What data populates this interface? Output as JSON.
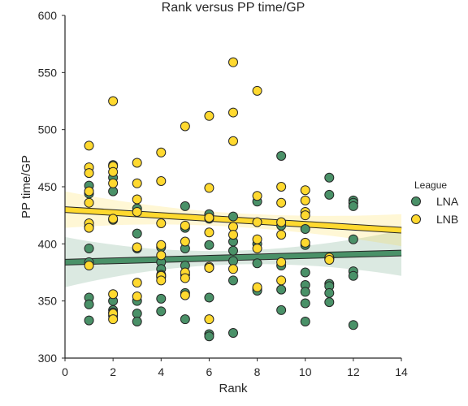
{
  "chart_data": {
    "type": "scatter",
    "title": "Rank versus PP time/GP",
    "xlabel": "Rank",
    "ylabel": "PP time/GP",
    "xlim": [
      0,
      14
    ],
    "ylim": [
      300,
      600
    ],
    "xticks": [
      0,
      2,
      4,
      6,
      8,
      10,
      12,
      14
    ],
    "yticks": [
      300,
      350,
      400,
      450,
      500,
      550,
      600
    ],
    "grid": false,
    "legend": {
      "title": "League",
      "placement": "right",
      "entries": [
        "LNA",
        "LNB"
      ]
    },
    "series": [
      {
        "name": "LNA",
        "color": "#4a9168",
        "points": [
          [
            1,
            451
          ],
          [
            1,
            444
          ],
          [
            1,
            415
          ],
          [
            1,
            396
          ],
          [
            1,
            384
          ],
          [
            1,
            353
          ],
          [
            1,
            347
          ],
          [
            1,
            333
          ],
          [
            2,
            469
          ],
          [
            2,
            458
          ],
          [
            2,
            446
          ],
          [
            2,
            421
          ],
          [
            2,
            350
          ],
          [
            2,
            342
          ],
          [
            2,
            340
          ],
          [
            2,
            337
          ],
          [
            3,
            431
          ],
          [
            3,
            409
          ],
          [
            3,
            396
          ],
          [
            3,
            350
          ],
          [
            3,
            339
          ],
          [
            3,
            332
          ],
          [
            4,
            397
          ],
          [
            4,
            384
          ],
          [
            4,
            378
          ],
          [
            4,
            373
          ],
          [
            4,
            371
          ],
          [
            4,
            352
          ],
          [
            4,
            341
          ],
          [
            5,
            433
          ],
          [
            5,
            414
          ],
          [
            5,
            396
          ],
          [
            5,
            381
          ],
          [
            5,
            373
          ],
          [
            5,
            357
          ],
          [
            5,
            334
          ],
          [
            6,
            426
          ],
          [
            6,
            422
          ],
          [
            6,
            399
          ],
          [
            6,
            379
          ],
          [
            6,
            353
          ],
          [
            6,
            321
          ],
          [
            6,
            319
          ],
          [
            7,
            424
          ],
          [
            7,
            402
          ],
          [
            7,
            394
          ],
          [
            7,
            385
          ],
          [
            7,
            368
          ],
          [
            7,
            322
          ],
          [
            8,
            437
          ],
          [
            8,
            400
          ],
          [
            8,
            383
          ],
          [
            8,
            361
          ],
          [
            8,
            359
          ],
          [
            9,
            477
          ],
          [
            9,
            416
          ],
          [
            9,
            381
          ],
          [
            9,
            360
          ],
          [
            9,
            342
          ],
          [
            10,
            413
          ],
          [
            10,
            399
          ],
          [
            10,
            375
          ],
          [
            10,
            364
          ],
          [
            10,
            358
          ],
          [
            10,
            348
          ],
          [
            10,
            332
          ],
          [
            11,
            458
          ],
          [
            11,
            443
          ],
          [
            11,
            387
          ],
          [
            11,
            365
          ],
          [
            11,
            363
          ],
          [
            11,
            357
          ],
          [
            11,
            349
          ],
          [
            12,
            438
          ],
          [
            12,
            436
          ],
          [
            12,
            433
          ],
          [
            12,
            404
          ],
          [
            12,
            376
          ],
          [
            12,
            372
          ],
          [
            12,
            329
          ]
        ],
        "fit": {
          "x": [
            0,
            14
          ],
          "y": [
            384,
            392
          ]
        }
      },
      {
        "name": "LNB",
        "color": "#ffd92f",
        "points": [
          [
            1,
            486
          ],
          [
            1,
            467
          ],
          [
            1,
            462
          ],
          [
            1,
            446
          ],
          [
            1,
            436
          ],
          [
            1,
            418
          ],
          [
            1,
            414
          ],
          [
            1,
            381
          ],
          [
            2,
            525
          ],
          [
            2,
            468
          ],
          [
            2,
            463
          ],
          [
            2,
            453
          ],
          [
            2,
            422
          ],
          [
            2,
            356
          ],
          [
            2,
            339
          ],
          [
            2,
            334
          ],
          [
            3,
            471
          ],
          [
            3,
            453
          ],
          [
            3,
            439
          ],
          [
            3,
            428
          ],
          [
            3,
            397
          ],
          [
            3,
            366
          ],
          [
            3,
            354
          ],
          [
            4,
            480
          ],
          [
            4,
            455
          ],
          [
            4,
            418
          ],
          [
            4,
            399
          ],
          [
            4,
            390
          ],
          [
            4,
            372
          ],
          [
            4,
            368
          ],
          [
            5,
            503
          ],
          [
            5,
            416
          ],
          [
            5,
            402
          ],
          [
            5,
            375
          ],
          [
            5,
            370
          ],
          [
            5,
            355
          ],
          [
            6,
            512
          ],
          [
            6,
            449
          ],
          [
            6,
            423
          ],
          [
            6,
            410
          ],
          [
            6,
            380
          ],
          [
            6,
            379
          ],
          [
            6,
            334
          ],
          [
            7,
            559
          ],
          [
            7,
            515
          ],
          [
            7,
            490
          ],
          [
            7,
            415
          ],
          [
            7,
            408
          ],
          [
            7,
            378
          ],
          [
            8,
            534
          ],
          [
            8,
            442
          ],
          [
            8,
            419
          ],
          [
            8,
            404
          ],
          [
            8,
            396
          ],
          [
            8,
            362
          ],
          [
            9,
            450
          ],
          [
            9,
            436
          ],
          [
            9,
            419
          ],
          [
            9,
            408
          ],
          [
            9,
            384
          ],
          [
            9,
            368
          ],
          [
            10,
            447
          ],
          [
            10,
            438
          ],
          [
            10,
            428
          ],
          [
            10,
            425
          ],
          [
            10,
            401
          ],
          [
            11,
            388
          ],
          [
            11,
            386
          ]
        ],
        "fit": {
          "x": [
            0,
            14
          ],
          "y": [
            430,
            412
          ]
        }
      }
    ]
  }
}
